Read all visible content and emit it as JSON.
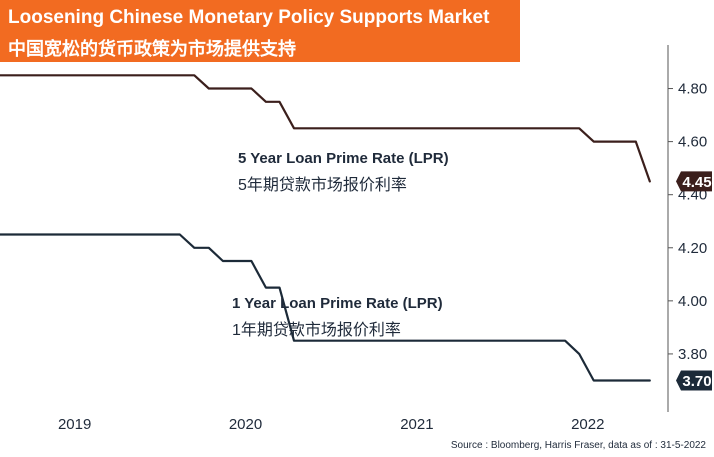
{
  "title": {
    "en": "Loosening Chinese Monetary Policy Supports Market",
    "cn": "中国宽松的货币政策为市场提供支持"
  },
  "source": "Source : Bloomberg, Harris Fraser, data as of : 31-5-2022",
  "colors": {
    "title_bg": "#f26b21",
    "title_text": "#ffffff",
    "five_year_line": "#3b1f1c",
    "one_year_line": "#1c2a38",
    "axis": "#555555",
    "text": "#1f2a3a"
  },
  "chart_data": {
    "type": "line",
    "x_type": "date",
    "xlim": [
      "2018-08-01",
      "2022-05-31"
    ],
    "ylim": [
      3.6,
      4.9
    ],
    "y_axis_position": "right",
    "y_ticks": [
      "3.80",
      "4.00",
      "4.20",
      "4.40",
      "4.60",
      "4.80"
    ],
    "x_ticks": [
      "2019",
      "2020",
      "2021",
      "2022"
    ],
    "series": [
      {
        "key": "five_year",
        "label_en": "5 Year Loan Prime Rate (LPR)",
        "label_cn": "5年期贷款市场报价利率",
        "end_label": "4.45",
        "points": [
          [
            "2018-08-01",
            4.85
          ],
          [
            "2019-08-20",
            4.85
          ],
          [
            "2019-09-20",
            4.85
          ],
          [
            "2019-10-21",
            4.8
          ],
          [
            "2019-11-20",
            4.8
          ],
          [
            "2019-12-20",
            4.8
          ],
          [
            "2020-01-20",
            4.8
          ],
          [
            "2020-02-20",
            4.75
          ],
          [
            "2020-03-20",
            4.75
          ],
          [
            "2020-04-20",
            4.65
          ],
          [
            "2020-12-20",
            4.65
          ],
          [
            "2021-06-20",
            4.65
          ],
          [
            "2021-12-20",
            4.65
          ],
          [
            "2022-01-20",
            4.6
          ],
          [
            "2022-04-20",
            4.6
          ],
          [
            "2022-05-20",
            4.45
          ]
        ]
      },
      {
        "key": "one_year",
        "label_en": "1 Year Loan Prime Rate (LPR)",
        "label_cn": "1年期贷款市场报价利率",
        "end_label": "3.70",
        "points": [
          [
            "2018-08-01",
            4.25
          ],
          [
            "2019-08-20",
            4.25
          ],
          [
            "2019-09-20",
            4.2
          ],
          [
            "2019-10-21",
            4.2
          ],
          [
            "2019-11-20",
            4.15
          ],
          [
            "2020-01-20",
            4.15
          ],
          [
            "2020-02-20",
            4.05
          ],
          [
            "2020-03-20",
            4.05
          ],
          [
            "2020-04-20",
            3.85
          ],
          [
            "2020-12-20",
            3.85
          ],
          [
            "2021-06-20",
            3.85
          ],
          [
            "2021-11-20",
            3.85
          ],
          [
            "2021-12-20",
            3.8
          ],
          [
            "2022-01-20",
            3.7
          ],
          [
            "2022-05-20",
            3.7
          ]
        ]
      }
    ]
  }
}
